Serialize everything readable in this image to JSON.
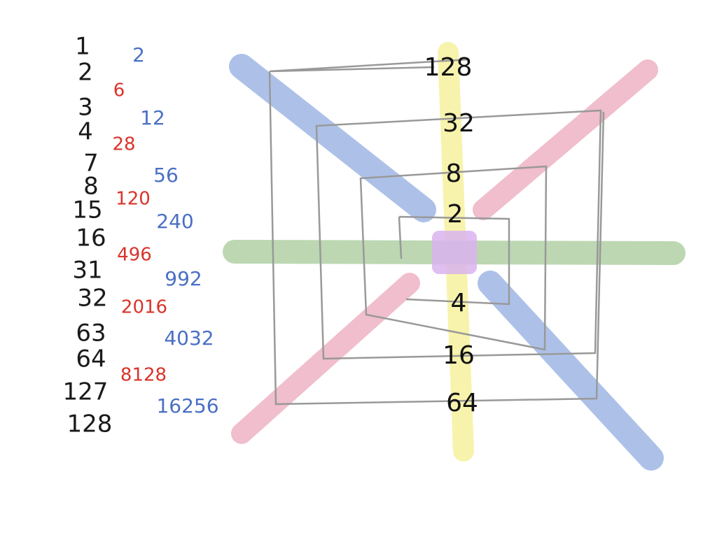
{
  "left_column": [
    "1",
    "2",
    "3",
    "4",
    "7",
    "8",
    "15",
    "16",
    "31",
    "32",
    "63",
    "64",
    "127",
    "128"
  ],
  "red_column": [
    "6",
    "28",
    "120",
    "496",
    "2016",
    "8128"
  ],
  "blue_column": [
    "2",
    "12",
    "56",
    "240",
    "992",
    "4032",
    "16256"
  ],
  "center_column": [
    "128",
    "32",
    "8",
    "2",
    "4",
    "16",
    "64"
  ]
}
